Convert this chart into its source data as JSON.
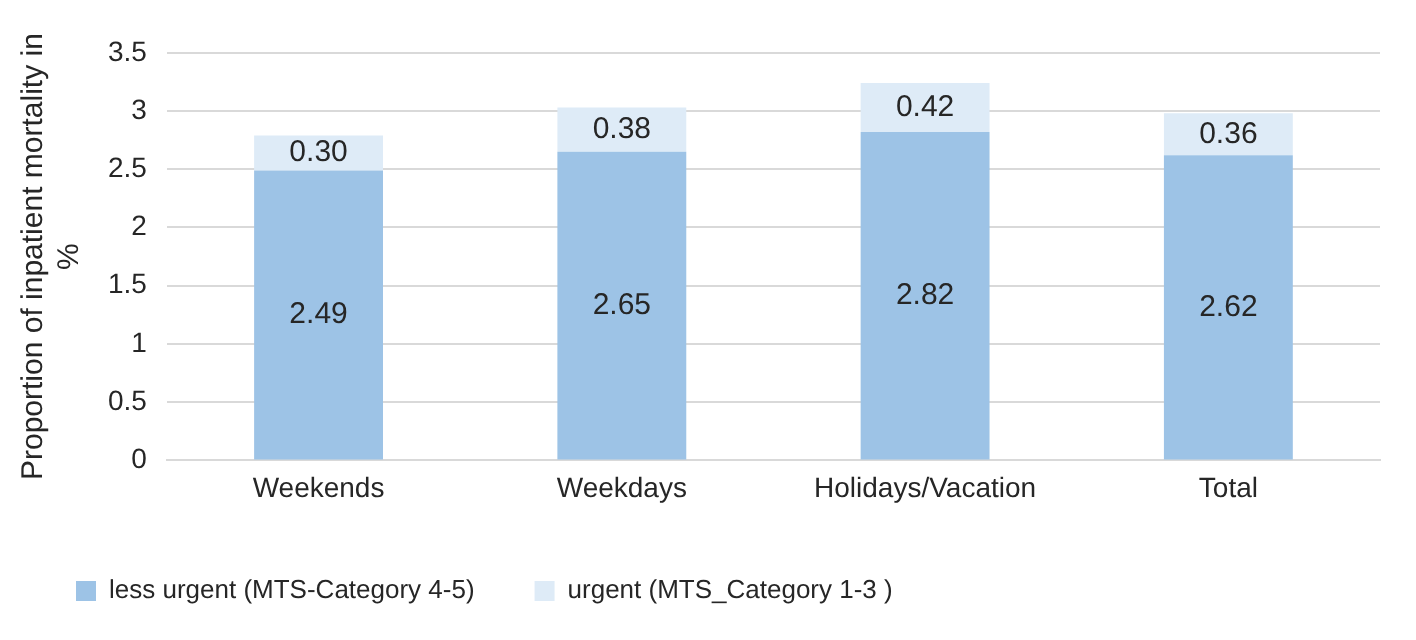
{
  "chart_data": {
    "type": "bar",
    "stacked": true,
    "ylabel": "Proportion of inpatient mortality in %",
    "categories": [
      "Weekends",
      "Weekdays",
      "Holidays/Vacation",
      "Total"
    ],
    "series": [
      {
        "name": "less urgent (MTS-Category 4-5)",
        "color": "#9dc3e6",
        "values": [
          2.49,
          2.65,
          2.82,
          2.62
        ],
        "value_labels": [
          "2.49",
          "2.65",
          "2.82",
          "2.62"
        ]
      },
      {
        "name": "urgent (MTS_Category 1-3 )",
        "color": "#deebf7",
        "values": [
          0.3,
          0.38,
          0.42,
          0.36
        ],
        "value_labels": [
          "0.30",
          "0.38",
          "0.42",
          "0.36"
        ]
      }
    ],
    "ylim": [
      0,
      3.5
    ],
    "yticks": [
      0,
      0.5,
      1,
      1.5,
      2,
      2.5,
      3,
      3.5
    ],
    "grid": "y",
    "legend": "bottom"
  }
}
